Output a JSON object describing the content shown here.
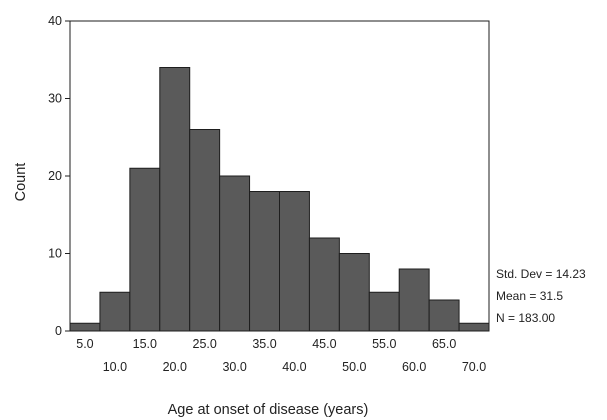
{
  "chart_data": {
    "type": "bar",
    "title": "",
    "xlabel": "Age at onset of disease (years)",
    "ylabel": "Count",
    "ylim": [
      0,
      40
    ],
    "y_ticks": [
      "0",
      "10",
      "20",
      "30",
      "40"
    ],
    "x_ticks_upper": [
      "5.0",
      "15.0",
      "25.0",
      "35.0",
      "45.0",
      "55.0",
      "65.0"
    ],
    "x_ticks_lower": [
      "10.0",
      "20.0",
      "30.0",
      "40.0",
      "50.0",
      "60.0",
      "70.0"
    ],
    "categories": [
      "5.0",
      "10.0",
      "15.0",
      "20.0",
      "25.0",
      "30.0",
      "35.0",
      "40.0",
      "45.0",
      "50.0",
      "55.0",
      "60.0",
      "65.0",
      "70.0"
    ],
    "values": [
      1,
      5,
      21,
      34,
      26,
      20,
      18,
      18,
      12,
      10,
      5,
      8,
      4,
      1
    ],
    "grid": false,
    "legend": "none",
    "bar_color": "#5a5a5a",
    "stats": {
      "std_dev": "Std. Dev = 14.23",
      "mean": "Mean = 31.5",
      "n": "N = 183.00"
    }
  }
}
